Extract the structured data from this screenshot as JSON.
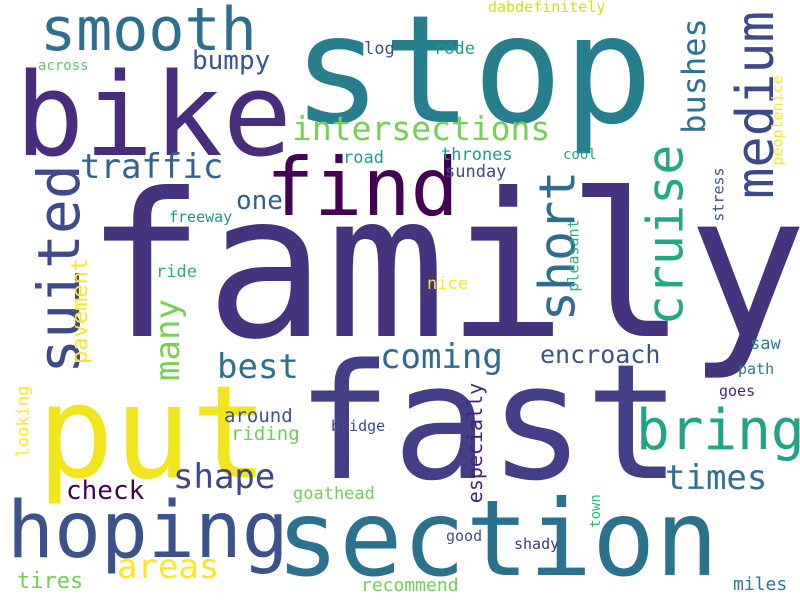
{
  "words": [
    {
      "text": "family",
      "color": "#46337e"
    },
    {
      "text": "stop",
      "color": "#277f8e"
    },
    {
      "text": "fast",
      "color": "#433e85"
    },
    {
      "text": "bike",
      "color": "#472d7b"
    },
    {
      "text": "section",
      "color": "#2c728e"
    },
    {
      "text": "put",
      "color": "#f1e51d"
    },
    {
      "text": "hoping",
      "color": "#3b528b"
    },
    {
      "text": "find",
      "color": "#440154"
    },
    {
      "text": "smooth",
      "color": "#2d708e"
    },
    {
      "text": "suited",
      "color": "#3e4a89"
    },
    {
      "text": "bring",
      "color": "#20a386"
    },
    {
      "text": "medium",
      "color": "#3e4989"
    },
    {
      "text": "cruise",
      "color": "#22a884"
    },
    {
      "text": "short",
      "color": "#2f6c8e"
    },
    {
      "text": "intersections",
      "color": "#75d054"
    },
    {
      "text": "traffic",
      "color": "#33638d"
    },
    {
      "text": "coming",
      "color": "#31688e"
    },
    {
      "text": "bushes",
      "color": "#2c728e"
    },
    {
      "text": "best",
      "color": "#2d708e"
    },
    {
      "text": "times",
      "color": "#2d718e"
    },
    {
      "text": "shape",
      "color": "#3f4788"
    },
    {
      "text": "areas",
      "color": "#fde725"
    },
    {
      "text": "many",
      "color": "#7ad151"
    },
    {
      "text": "encroach",
      "color": "#3b528b"
    },
    {
      "text": "bumpy",
      "color": "#3a548c"
    },
    {
      "text": "check",
      "color": "#440154"
    },
    {
      "text": "one",
      "color": "#355f8d"
    },
    {
      "text": "pavement",
      "color": "#fde725"
    },
    {
      "text": "tires",
      "color": "#73d056"
    },
    {
      "text": "especially",
      "color": "#482374"
    },
    {
      "text": "around",
      "color": "#3a548c"
    },
    {
      "text": "riding",
      "color": "#6ccd5a"
    },
    {
      "text": "goathead",
      "color": "#70cf57"
    },
    {
      "text": "recommend",
      "color": "#70cf57"
    },
    {
      "text": "miles",
      "color": "#2a788e"
    },
    {
      "text": "looking",
      "color": "#fde725"
    },
    {
      "text": "thrones",
      "color": "#1f9a8a"
    },
    {
      "text": "sunday",
      "color": "#3e4a89"
    },
    {
      "text": "road",
      "color": "#1f9e89"
    },
    {
      "text": "log",
      "color": "#3b528b"
    },
    {
      "text": "rode",
      "color": "#1e9c89"
    },
    {
      "text": "ride",
      "color": "#29af7f"
    },
    {
      "text": "freeway",
      "color": "#1f968b"
    },
    {
      "text": "nice",
      "color": "#fde725"
    },
    {
      "text": "pleasant",
      "color": "#2db27d"
    },
    {
      "text": "stress",
      "color": "#3b528b"
    },
    {
      "text": "cool",
      "color": "#20a386"
    },
    {
      "text": "peoplenice",
      "color": "#fde725"
    },
    {
      "text": "saw",
      "color": "#26828e"
    },
    {
      "text": "path",
      "color": "#2a788e"
    },
    {
      "text": "goes",
      "color": "#482878"
    },
    {
      "text": "bridge",
      "color": "#3e4a89"
    },
    {
      "text": "good",
      "color": "#3b528b"
    },
    {
      "text": "shady",
      "color": "#46337e"
    },
    {
      "text": "town",
      "color": "#35b779"
    },
    {
      "text": "across",
      "color": "#5ec962"
    },
    {
      "text": "dabdefinitely",
      "color": "#d2e21b"
    }
  ]
}
